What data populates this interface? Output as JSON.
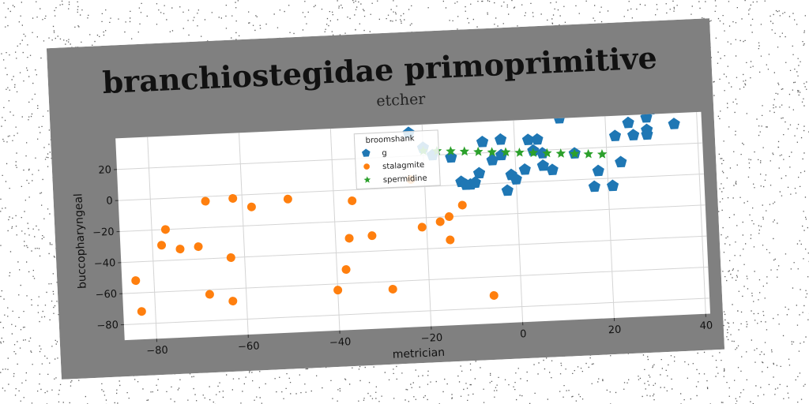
{
  "chart_data": {
    "type": "scatter",
    "title": "branchiostegidae primoprimitive",
    "subtitle": "etcher",
    "xlabel": "metrician",
    "ylabel": "buccopharyngeal",
    "xlim": [
      -87,
      41
    ],
    "ylim": [
      -90,
      40
    ],
    "xticks": [
      -80,
      -60,
      -40,
      -20,
      0,
      20,
      40
    ],
    "yticks": [
      -80,
      -60,
      -40,
      -20,
      0,
      20
    ],
    "grid": true,
    "legend": {
      "title": "broomshank",
      "placement": "top-center"
    },
    "series": [
      {
        "name": "g",
        "marker": "pentagon",
        "color": "#1f77b4",
        "points": [
          [
            -23,
            35
          ],
          [
            -20,
            25
          ],
          [
            -18,
            20
          ],
          [
            -14,
            18
          ],
          [
            -12,
            2
          ],
          [
            -11,
            0
          ],
          [
            -10,
            0
          ],
          [
            -9,
            1
          ],
          [
            -8,
            7
          ],
          [
            -7,
            27
          ],
          [
            -5,
            15
          ],
          [
            -3,
            28
          ],
          [
            -3,
            18
          ],
          [
            -2,
            -5
          ],
          [
            -1,
            5
          ],
          [
            0,
            2
          ],
          [
            0,
            45
          ],
          [
            1,
            47
          ],
          [
            2,
            48
          ],
          [
            2,
            8
          ],
          [
            3,
            27
          ],
          [
            4,
            20
          ],
          [
            5,
            27
          ],
          [
            6,
            10
          ],
          [
            6,
            18
          ],
          [
            8,
            7
          ],
          [
            10,
            40
          ],
          [
            13,
            17
          ],
          [
            17,
            -5
          ],
          [
            18,
            5
          ],
          [
            21,
            -5
          ],
          [
            22,
            27
          ],
          [
            23,
            10
          ],
          [
            25,
            35
          ],
          [
            26,
            27
          ],
          [
            28,
            50
          ],
          [
            29,
            38
          ],
          [
            29,
            30
          ],
          [
            29,
            27
          ],
          [
            30,
            43
          ],
          [
            31,
            47
          ],
          [
            34,
            50
          ],
          [
            35,
            33
          ]
        ]
      },
      {
        "name": "stalagmite",
        "marker": "circle",
        "color": "#ff7f0e",
        "points": [
          [
            -84,
            -52
          ],
          [
            -83,
            -72
          ],
          [
            -78,
            -30
          ],
          [
            -77,
            -20
          ],
          [
            -74,
            -33
          ],
          [
            -70,
            -32
          ],
          [
            -68,
            -63
          ],
          [
            -68,
            -3
          ],
          [
            -63,
            -40
          ],
          [
            -63,
            -68
          ],
          [
            -62,
            -2
          ],
          [
            -58,
            -8
          ],
          [
            -50,
            -4
          ],
          [
            -40,
            -64
          ],
          [
            -38,
            -51
          ],
          [
            -37,
            -31
          ],
          [
            -36,
            -7
          ],
          [
            -32,
            -30
          ],
          [
            -28,
            -65
          ],
          [
            -23,
            5
          ],
          [
            -21,
            -26
          ],
          [
            -17,
            -23
          ],
          [
            -15,
            -20
          ],
          [
            -15,
            -35
          ],
          [
            -12,
            -13
          ],
          [
            -6,
            -72
          ]
        ]
      },
      {
        "name": "spermidine",
        "marker": "star",
        "color": "#2ca02c",
        "points": [
          [
            -20,
            23
          ],
          [
            -17,
            22.5
          ],
          [
            -14,
            22
          ],
          [
            -11,
            21.4
          ],
          [
            -8,
            20.8
          ],
          [
            -5,
            20.2
          ],
          [
            -2,
            19.7
          ],
          [
            1,
            19.1
          ],
          [
            4,
            18.5
          ],
          [
            7,
            17.9
          ],
          [
            10,
            17.3
          ],
          [
            13,
            16.7
          ],
          [
            16,
            16.1
          ],
          [
            19,
            15.6
          ]
        ]
      }
    ]
  }
}
